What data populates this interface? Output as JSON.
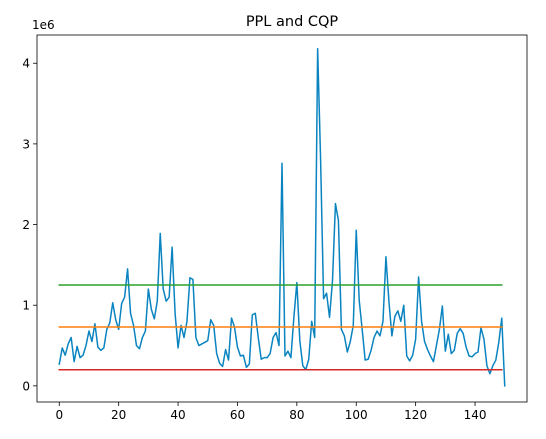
{
  "chart_data": {
    "type": "line",
    "title": "PPL and CQP",
    "xlabel": "",
    "ylabel": "",
    "y_offset_label": "1e6",
    "xlim": [
      -7.5,
      157.5
    ],
    "ylim": [
      -200000,
      4350000
    ],
    "x_ticks": [
      0,
      20,
      40,
      60,
      80,
      100,
      120,
      140
    ],
    "y_ticks": [
      0,
      1000000,
      2000000,
      3000000,
      4000000
    ],
    "y_tick_labels": [
      "0",
      "1",
      "2",
      "3",
      "4"
    ],
    "grid": false,
    "series": [
      {
        "color": "#0a84c0",
        "x_start": 0,
        "values": [
          270000,
          470000,
          380000,
          520000,
          600000,
          300000,
          490000,
          350000,
          380000,
          500000,
          680000,
          550000,
          770000,
          480000,
          440000,
          470000,
          700000,
          780000,
          1030000,
          820000,
          700000,
          1020000,
          1100000,
          1450000,
          900000,
          750000,
          500000,
          460000,
          600000,
          680000,
          1200000,
          950000,
          830000,
          1050000,
          1890000,
          1200000,
          1050000,
          1100000,
          1720000,
          900000,
          470000,
          750000,
          600000,
          800000,
          1340000,
          1320000,
          600000,
          500000,
          520000,
          540000,
          560000,
          820000,
          750000,
          400000,
          280000,
          240000,
          450000,
          320000,
          840000,
          730000,
          480000,
          370000,
          380000,
          230000,
          270000,
          880000,
          900000,
          600000,
          330000,
          350000,
          350000,
          400000,
          600000,
          660000,
          500000,
          2760000,
          370000,
          430000,
          350000,
          850000,
          1280000,
          560000,
          250000,
          200000,
          330000,
          800000,
          600000,
          4180000,
          2800000,
          1080000,
          1150000,
          850000,
          1300000,
          2260000,
          2050000,
          700000,
          620000,
          420000,
          550000,
          750000,
          1930000,
          1060000,
          700000,
          320000,
          330000,
          440000,
          600000,
          680000,
          620000,
          800000,
          1600000,
          1050000,
          620000,
          860000,
          930000,
          800000,
          1000000,
          370000,
          310000,
          380000,
          580000,
          1350000,
          800000,
          550000,
          450000,
          370000,
          300000,
          500000,
          700000,
          990000,
          430000,
          640000,
          400000,
          440000,
          650000,
          710000,
          650000,
          480000,
          370000,
          360000,
          400000,
          420000,
          720000,
          580000,
          250000,
          150000,
          250000,
          320000,
          540000,
          840000,
          0
        ]
      },
      {
        "color": "#ff7f0e",
        "x": [
          0,
          149
        ],
        "values": [
          730000,
          730000
        ]
      },
      {
        "color": "#2ca02c",
        "x": [
          0,
          149
        ],
        "values": [
          1250000,
          1250000
        ]
      },
      {
        "color": "#d62728",
        "x": [
          0,
          149
        ],
        "values": [
          200000,
          200000
        ]
      }
    ]
  }
}
